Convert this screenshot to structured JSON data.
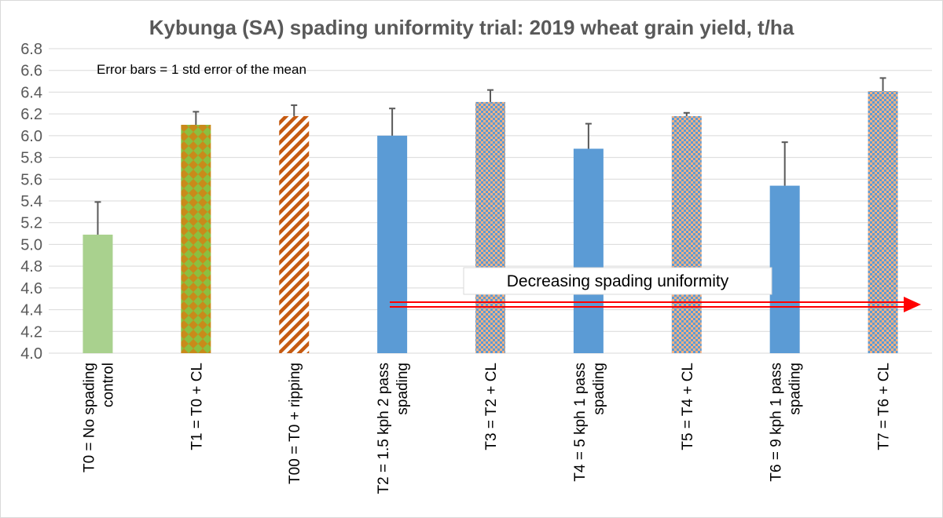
{
  "chart_data": {
    "type": "bar",
    "title": "Kybunga (SA) spading uniformity trial: 2019 wheat grain yield, t/ha",
    "xlabel": "",
    "ylabel": "",
    "ylim": [
      4.0,
      6.8
    ],
    "yticks": [
      "4.0",
      "4.2",
      "4.4",
      "4.6",
      "4.8",
      "5.0",
      "5.2",
      "5.4",
      "5.6",
      "5.8",
      "6.0",
      "6.2",
      "6.4",
      "6.6",
      "6.8"
    ],
    "grid": true,
    "note": "Error bars = 1 std error of the mean",
    "annotation": "Decreasing spading uniformity",
    "categories": [
      [
        "T0 = No spading",
        "control"
      ],
      [
        "T1 = T0 + CL"
      ],
      [
        "T00 = T0 + ripping"
      ],
      [
        "T2 = 1.5 kph 2 pass",
        "spading"
      ],
      [
        "T3 = T2 + CL"
      ],
      [
        "T4 = 5 kph 1 pass",
        "spading"
      ],
      [
        "T5 = T4 + CL"
      ],
      [
        "T6 = 9 kph 1 pass",
        "spading"
      ],
      [
        "T7 = T6 + CL"
      ]
    ],
    "values": [
      5.09,
      6.1,
      6.18,
      6.0,
      6.31,
      5.88,
      6.18,
      5.54,
      6.41
    ],
    "errors": [
      0.3,
      0.12,
      0.1,
      0.25,
      0.11,
      0.23,
      0.03,
      0.4,
      0.12
    ],
    "bar_styles": [
      "solid-green",
      "green-diamond",
      "orange-stripe",
      "solid-blue",
      "blue-orange-check",
      "solid-blue",
      "blue-orange-check",
      "solid-blue",
      "blue-orange-check"
    ],
    "colors": {
      "green": "#a9d18e",
      "blue": "#5b9bd5",
      "orange": "#c55a11",
      "olive": "#a6a61c",
      "grid": "#d9d9d9",
      "arrow": "#ff0000",
      "error_bar": "#595959"
    }
  }
}
